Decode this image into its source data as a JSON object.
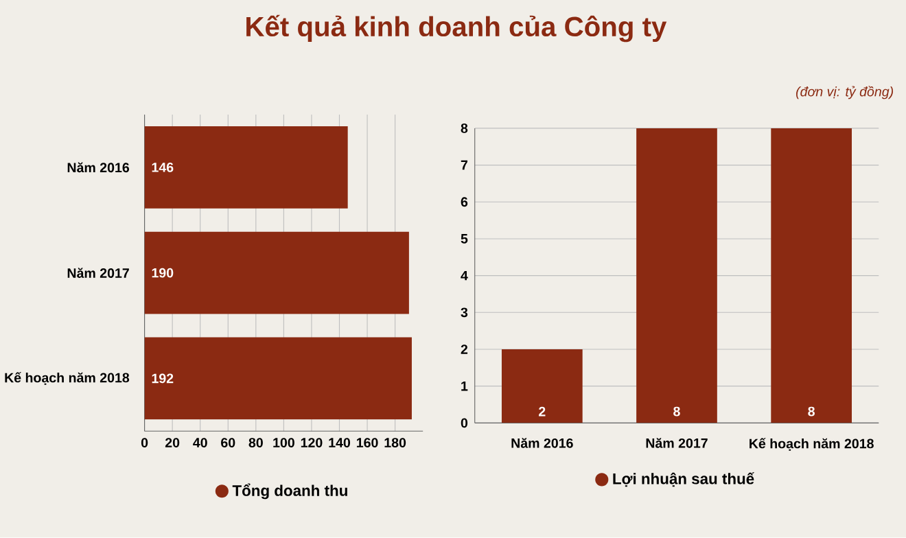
{
  "chart_data": [
    {
      "type": "bar",
      "orientation": "horizontal",
      "title": "Kết quả kinh doanh của Công ty",
      "categories": [
        "Năm 2016",
        "Năm 2017",
        "Kế hoạch năm 2018"
      ],
      "series": [
        {
          "name": "Tổng doanh thu",
          "color": "#8b2a12",
          "values": [
            146,
            190,
            192
          ]
        }
      ],
      "xlim": [
        0,
        200
      ],
      "xticks": [
        0,
        20,
        40,
        60,
        80,
        100,
        120,
        140,
        160,
        180
      ],
      "grid": "x",
      "legend": "bottom",
      "data_labels": true
    },
    {
      "type": "bar",
      "subtitle": "(đơn vị: tỷ đồng)",
      "categories": [
        "Năm 2016",
        "Năm 2017",
        "Kế hoạch năm 2018"
      ],
      "series": [
        {
          "name": "Lợi nhuận sau thuế",
          "color": "#8b2a12",
          "values": [
            2,
            8,
            8
          ]
        }
      ],
      "ylim": [
        0,
        8
      ],
      "yticks": [
        0,
        1,
        2,
        3,
        4,
        5,
        6,
        7,
        8
      ],
      "grid": "y",
      "legend": "bottom",
      "data_labels": true
    }
  ]
}
